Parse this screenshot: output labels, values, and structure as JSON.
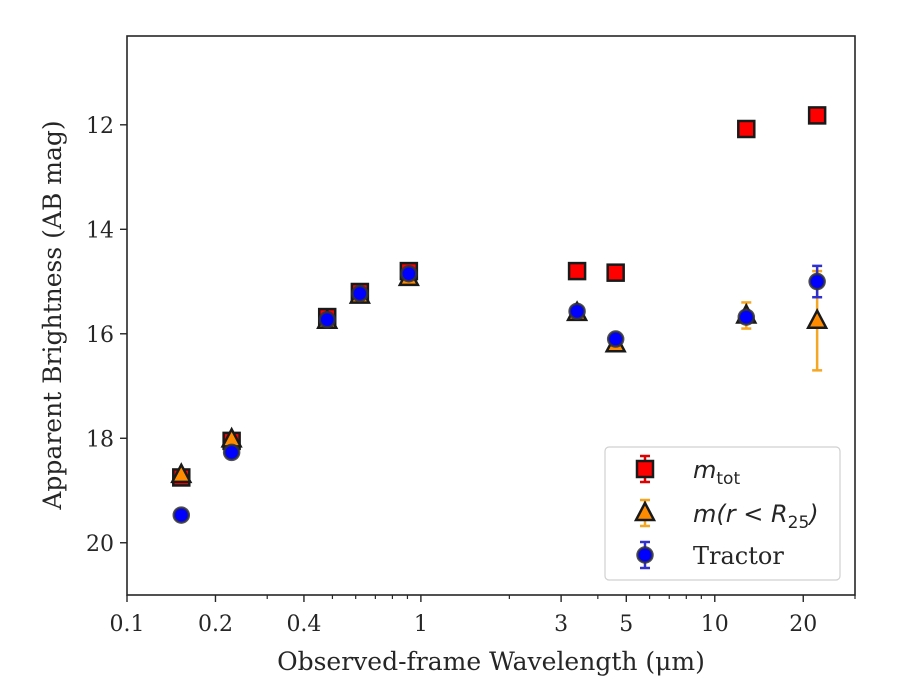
{
  "chart_data": {
    "type": "scatter",
    "title": "",
    "xlabel": "Observed-frame Wavelength (μm)",
    "ylabel": "Apparent Brightness (AB mag)",
    "x_scale": "log",
    "xlim": [
      0.1,
      30
    ],
    "ylim": [
      21,
      10.3
    ],
    "y_inverted": true,
    "grid": false,
    "legend_position": "lower-right",
    "x_ticks": [
      {
        "value": 0.1,
        "label": "0.1"
      },
      {
        "value": 0.2,
        "label": "0.2"
      },
      {
        "value": 0.4,
        "label": "0.4"
      },
      {
        "value": 1,
        "label": "1"
      },
      {
        "value": 3,
        "label": "3"
      },
      {
        "value": 5,
        "label": "5"
      },
      {
        "value": 10,
        "label": "10"
      },
      {
        "value": 20,
        "label": "20"
      }
    ],
    "y_ticks": [
      {
        "value": 12,
        "label": "12"
      },
      {
        "value": 14,
        "label": "14"
      },
      {
        "value": 16,
        "label": "16"
      },
      {
        "value": 18,
        "label": "18"
      },
      {
        "value": 20,
        "label": "20"
      }
    ],
    "series": [
      {
        "name_main": "m",
        "name_sub": "tot",
        "marker": "square",
        "color": "#ff0000",
        "errcolor": "#e00000",
        "x": [
          0.153,
          0.227,
          0.48,
          0.62,
          0.91,
          3.4,
          4.6,
          12.8,
          22.3
        ],
        "y": [
          18.75,
          18.05,
          15.68,
          15.2,
          14.8,
          14.8,
          14.83,
          12.08,
          11.82
        ],
        "err": [
          0.03,
          0.03,
          0.03,
          0.03,
          0.03,
          0.03,
          0.03,
          0.04,
          0.05
        ]
      },
      {
        "name_main": "m(r < R",
        "name_sub": "25",
        "name_end": ")",
        "marker": "triangle",
        "color": "#ff8c00",
        "errcolor": "#f5a623",
        "x": [
          0.153,
          0.227,
          0.48,
          0.62,
          0.91,
          3.4,
          4.6,
          12.8,
          22.3
        ],
        "y": [
          18.7,
          18.02,
          15.75,
          15.27,
          14.93,
          15.6,
          16.2,
          15.65,
          15.75
        ],
        "err": [
          0.03,
          0.03,
          0.03,
          0.03,
          0.03,
          0.05,
          0.05,
          0.25,
          0.95
        ]
      },
      {
        "name_main": "Tractor",
        "marker": "circle",
        "color": "#0000ff",
        "errcolor": "#3030cc",
        "x": [
          0.153,
          0.227,
          0.48,
          0.62,
          0.91,
          3.4,
          4.6,
          12.8,
          22.3
        ],
        "y": [
          19.47,
          18.27,
          15.73,
          15.23,
          14.85,
          15.57,
          16.1,
          15.68,
          15.0
        ],
        "err": [
          0.03,
          0.03,
          0.03,
          0.03,
          0.03,
          0.03,
          0.03,
          0.05,
          0.3
        ]
      }
    ]
  }
}
